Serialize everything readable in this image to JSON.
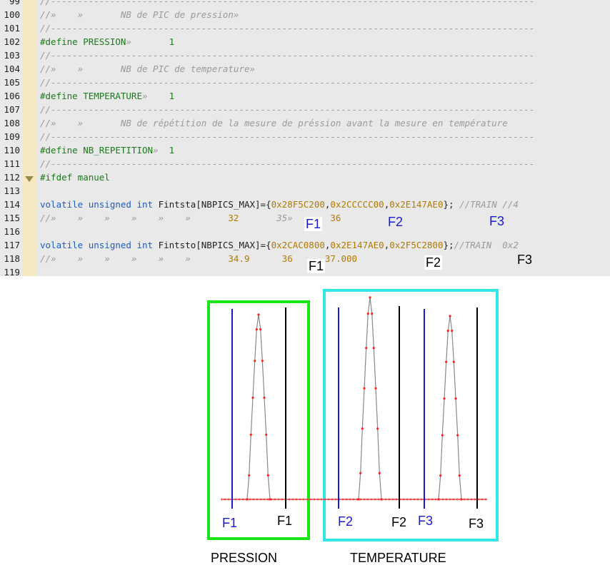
{
  "editor": {
    "lines": [
      {
        "n": "99",
        "parts": [
          {
            "c": "cm",
            "t": "//------------------------------------------------------------------------------------------"
          }
        ]
      },
      {
        "n": "100",
        "parts": [
          {
            "c": "cm",
            "t": "//»    »       NB de PIC de pression»"
          }
        ]
      },
      {
        "n": "101",
        "parts": [
          {
            "c": "cm",
            "t": "//------------------------------------------------------------------------------------------"
          }
        ]
      },
      {
        "n": "102",
        "parts": [
          {
            "c": "dir",
            "t": "#define PRESSION"
          },
          {
            "c": "cm",
            "t": "»       "
          },
          {
            "c": "dir",
            "t": "1"
          }
        ]
      },
      {
        "n": "103",
        "parts": [
          {
            "c": "cm",
            "t": "//------------------------------------------------------------------------------------------"
          }
        ]
      },
      {
        "n": "104",
        "parts": [
          {
            "c": "cm",
            "t": "//»    »       NB de PIC de temperature»"
          }
        ]
      },
      {
        "n": "105",
        "parts": [
          {
            "c": "cm",
            "t": "//------------------------------------------------------------------------------------------"
          }
        ]
      },
      {
        "n": "106",
        "parts": [
          {
            "c": "dir",
            "t": "#define TEMPERATURE"
          },
          {
            "c": "cm",
            "t": "»    "
          },
          {
            "c": "dir",
            "t": "1"
          }
        ]
      },
      {
        "n": "107",
        "parts": [
          {
            "c": "cm",
            "t": "//------------------------------------------------------------------------------------------"
          }
        ]
      },
      {
        "n": "108",
        "parts": [
          {
            "c": "cm",
            "t": "//»    »       NB de répétition de la mesure de préssion avant la mesure en température"
          }
        ]
      },
      {
        "n": "109",
        "parts": [
          {
            "c": "cm",
            "t": "//------------------------------------------------------------------------------------------"
          }
        ]
      },
      {
        "n": "110",
        "parts": [
          {
            "c": "dir",
            "t": "#define NB_REPETITION"
          },
          {
            "c": "cm",
            "t": "»  "
          },
          {
            "c": "dir",
            "t": "1"
          }
        ]
      },
      {
        "n": "111",
        "parts": [
          {
            "c": "cm",
            "t": "//------------------------------------------------------------------------------------------"
          }
        ]
      },
      {
        "n": "112",
        "parts": [
          {
            "c": "dir",
            "t": "#ifdef manuel"
          }
        ]
      },
      {
        "n": "113",
        "parts": []
      },
      {
        "n": "114",
        "parts": [
          {
            "c": "kw",
            "t": "volatile unsigned int"
          },
          {
            "c": "",
            "t": " Fintsta[NBPICS_MAX]={"
          },
          {
            "c": "num",
            "t": "0x28F5C200"
          },
          {
            "c": "",
            "t": ","
          },
          {
            "c": "num",
            "t": "0x2CCCCC00"
          },
          {
            "c": "",
            "t": ","
          },
          {
            "c": "num",
            "t": "0x2E147AE0"
          },
          {
            "c": "",
            "t": "}; "
          },
          {
            "c": "cm",
            "t": "//TRAIN //4"
          }
        ]
      },
      {
        "n": "115",
        "parts": [
          {
            "c": "cm",
            "t": "//»    »    »    »    »    »       "
          },
          {
            "c": "num",
            "t": "32"
          },
          {
            "c": "cm",
            "t": "       35»       "
          },
          {
            "c": "num",
            "t": "36"
          }
        ]
      },
      {
        "n": "116",
        "parts": []
      },
      {
        "n": "117",
        "parts": [
          {
            "c": "kw",
            "t": "volatile unsigned int"
          },
          {
            "c": "",
            "t": " Fintsto[NBPICS_MAX]={"
          },
          {
            "c": "num",
            "t": "0x2CAC0800"
          },
          {
            "c": "",
            "t": ","
          },
          {
            "c": "num",
            "t": "0x2E147AE0"
          },
          {
            "c": "",
            "t": ","
          },
          {
            "c": "num",
            "t": "0x2F5C2800"
          },
          {
            "c": "",
            "t": "};"
          },
          {
            "c": "cm",
            "t": "//TRAIN  0x2"
          }
        ]
      },
      {
        "n": "118",
        "parts": [
          {
            "c": "cm",
            "t": "//»    »    »    »    »    »       "
          },
          {
            "c": "num",
            "t": "34.9"
          },
          {
            "c": "cm",
            "t": "      "
          },
          {
            "c": "num",
            "t": "36"
          },
          {
            "c": "cm",
            "t": "      "
          },
          {
            "c": "num",
            "t": "37.000"
          }
        ]
      },
      {
        "n": "119",
        "parts": []
      }
    ],
    "overlays": {
      "row115": {
        "f1": "F1",
        "f2": "F2",
        "f3": "F3"
      },
      "row118": {
        "f1": "F1",
        "f2": "F2",
        "f3": "F3"
      }
    }
  },
  "diagram": {
    "colors": {
      "pression_box": "#19e619",
      "temperature_box": "#33e6e6",
      "start_line": "#1a1ad0",
      "stop_line": "#000000",
      "peak": "#ff2020",
      "trace": "#888888"
    },
    "pression": {
      "title": "PRESSION",
      "f_start": "F1",
      "f_stop": "F1"
    },
    "temperature": {
      "title": "TEMPERATURE",
      "peaks": [
        {
          "f_start": "F2",
          "f_stop": "F2"
        },
        {
          "f_start": "F3",
          "f_stop": "F3"
        }
      ]
    }
  }
}
